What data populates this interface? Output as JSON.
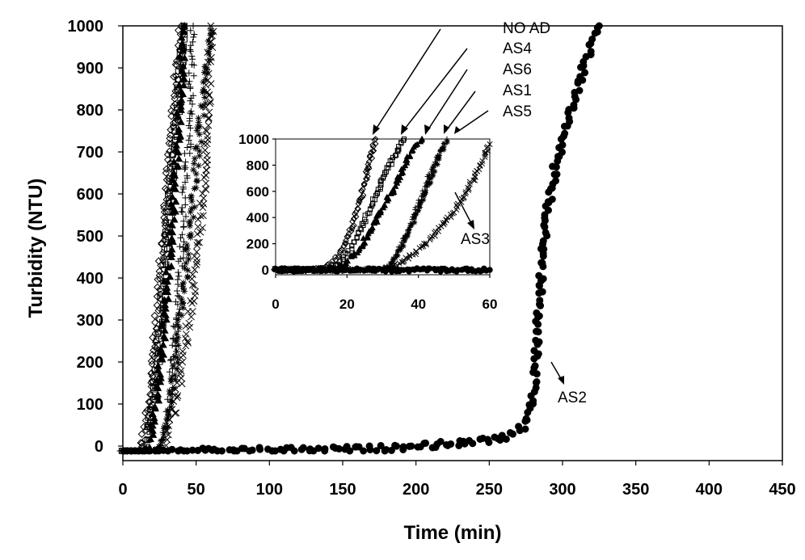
{
  "chart_data": [
    {
      "type": "scatter",
      "role": "main",
      "xlabel": "Time (min)",
      "ylabel": "Turbidity (NTU)",
      "xlim": [
        0,
        450
      ],
      "ylim": [
        0,
        1000
      ],
      "xticks": [
        0,
        50,
        100,
        150,
        200,
        250,
        300,
        350,
        400,
        450
      ],
      "yticks": [
        0,
        100,
        200,
        300,
        400,
        500,
        600,
        700,
        800,
        900,
        1000
      ],
      "grid": false,
      "legend": "none",
      "series": [
        {
          "name": "NO AD",
          "marker": "diamond",
          "x": [
            0,
            5,
            10,
            12,
            14,
            16,
            18,
            20,
            22,
            24,
            26,
            28,
            30,
            32,
            34,
            36,
            38,
            40
          ],
          "y": [
            -20,
            -20,
            -18,
            -5,
            20,
            60,
            110,
            180,
            250,
            330,
            420,
            510,
            600,
            690,
            780,
            860,
            940,
            1000
          ]
        },
        {
          "name": "AS4",
          "marker": "square",
          "x": [
            0,
            5,
            10,
            14,
            16,
            18,
            20,
            22,
            24,
            26,
            28,
            30,
            32,
            34,
            36,
            38,
            40,
            42
          ],
          "y": [
            -20,
            -20,
            -18,
            -10,
            10,
            40,
            90,
            150,
            220,
            300,
            390,
            480,
            570,
            660,
            750,
            840,
            930,
            1000
          ]
        },
        {
          "name": "AS6",
          "marker": "triangle",
          "x": [
            0,
            5,
            10,
            15,
            18,
            20,
            22,
            24,
            26,
            28,
            30,
            32,
            34,
            36,
            38,
            40,
            42
          ],
          "y": [
            -20,
            -20,
            -18,
            -12,
            0,
            30,
            80,
            140,
            210,
            290,
            380,
            470,
            560,
            660,
            760,
            880,
            1000
          ]
        },
        {
          "name": "AS1",
          "marker": "cross",
          "x": [
            0,
            10,
            20,
            25,
            28,
            30,
            32,
            34,
            36,
            38,
            40,
            42,
            44,
            46,
            48
          ],
          "y": [
            -20,
            -20,
            -16,
            -10,
            10,
            40,
            100,
            180,
            270,
            370,
            470,
            580,
            690,
            820,
            1000
          ]
        },
        {
          "name": "AS5",
          "marker": "star",
          "x": [
            0,
            10,
            20,
            24,
            27,
            30,
            33,
            36,
            39,
            42,
            45,
            48,
            51,
            54,
            57,
            60
          ],
          "y": [
            -20,
            -20,
            -16,
            -8,
            20,
            60,
            120,
            200,
            290,
            390,
            500,
            600,
            700,
            800,
            890,
            990
          ]
        },
        {
          "name": "AS3",
          "marker": "x",
          "x": [
            0,
            10,
            20,
            25,
            28,
            32,
            36,
            40,
            44,
            48,
            52,
            56,
            60
          ],
          "y": [
            -20,
            -20,
            -16,
            -10,
            5,
            40,
            100,
            180,
            270,
            380,
            500,
            650,
            1000
          ]
        },
        {
          "name": "AS2",
          "marker": "circle",
          "x": [
            0,
            50,
            100,
            150,
            180,
            200,
            220,
            240,
            250,
            260,
            265,
            270,
            273,
            276,
            278,
            280,
            282,
            284,
            286,
            288,
            290,
            292,
            295,
            300,
            305,
            310,
            315,
            320,
            325
          ],
          "y": [
            -15,
            -12,
            -10,
            -8,
            -5,
            0,
            5,
            10,
            15,
            20,
            25,
            35,
            45,
            60,
            80,
            130,
            230,
            340,
            430,
            500,
            560,
            610,
            660,
            730,
            790,
            850,
            910,
            960,
            1000
          ]
        }
      ]
    },
    {
      "type": "scatter",
      "role": "inset",
      "xlim": [
        0,
        60
      ],
      "ylim": [
        0,
        1000
      ],
      "xticks": [
        0,
        20,
        40,
        60
      ],
      "yticks": [
        0,
        200,
        400,
        600,
        800,
        1000
      ],
      "series": [
        {
          "name": "NO AD",
          "marker": "diamond",
          "x": [
            0,
            5,
            10,
            14,
            16,
            18,
            20,
            22,
            24,
            26,
            28
          ],
          "y": [
            0,
            0,
            5,
            20,
            60,
            130,
            230,
            380,
            560,
            780,
            1000
          ]
        },
        {
          "name": "AS4",
          "marker": "square",
          "x": [
            0,
            10,
            15,
            17,
            19,
            21,
            23,
            25,
            27,
            29,
            31,
            33,
            35,
            36
          ],
          "y": [
            0,
            0,
            10,
            40,
            90,
            160,
            260,
            380,
            500,
            620,
            740,
            860,
            960,
            1000
          ]
        },
        {
          "name": "AS6",
          "marker": "triangle",
          "x": [
            0,
            10,
            17,
            19,
            21,
            23,
            25,
            27,
            29,
            31,
            33,
            35,
            37,
            39,
            41
          ],
          "y": [
            0,
            0,
            10,
            40,
            90,
            150,
            230,
            320,
            420,
            520,
            620,
            730,
            840,
            940,
            1000
          ]
        },
        {
          "name": "AS1",
          "marker": "cross",
          "x": [
            0,
            10,
            20,
            30,
            32,
            34,
            36,
            38,
            40,
            42,
            44,
            46,
            48
          ],
          "y": [
            0,
            0,
            0,
            5,
            40,
            120,
            230,
            360,
            500,
            640,
            780,
            900,
            1000
          ]
        },
        {
          "name": "AS5",
          "marker": "star",
          "x": [
            0,
            10,
            20,
            30,
            32,
            34,
            36,
            38,
            40,
            42,
            44,
            46,
            48
          ],
          "y": [
            0,
            0,
            0,
            5,
            40,
            110,
            210,
            330,
            460,
            600,
            740,
            880,
            990
          ]
        },
        {
          "name": "AS3",
          "marker": "x",
          "x": [
            0,
            10,
            20,
            30,
            34,
            38,
            42,
            46,
            50,
            54,
            58,
            60
          ],
          "y": [
            0,
            0,
            0,
            5,
            40,
            110,
            200,
            310,
            450,
            620,
            820,
            960
          ]
        },
        {
          "name": "AS2",
          "marker": "circle",
          "x": [
            0,
            10,
            20,
            30,
            40,
            50,
            60
          ],
          "y": [
            0,
            0,
            0,
            0,
            0,
            0,
            0
          ]
        }
      ]
    }
  ],
  "annotations": {
    "no_ad": "NO AD",
    "as4": "AS4",
    "as6": "AS6",
    "as1": "AS1",
    "as5": "AS5",
    "as3": "AS3",
    "as2": "AS2"
  }
}
